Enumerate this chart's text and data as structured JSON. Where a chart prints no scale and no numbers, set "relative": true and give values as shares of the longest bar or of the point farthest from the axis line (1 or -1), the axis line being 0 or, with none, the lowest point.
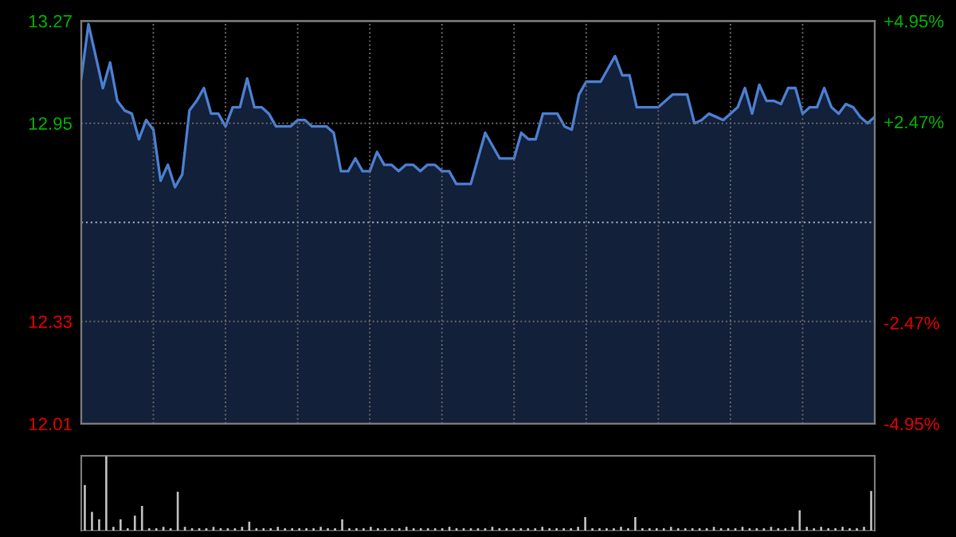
{
  "chart_data": [
    {
      "type": "area",
      "categories": [
        null,
        null,
        null,
        null,
        null,
        null,
        null,
        null,
        null,
        null,
        null,
        null,
        null,
        null,
        null,
        null,
        null,
        null,
        null,
        null,
        null,
        null,
        null,
        null,
        null,
        null,
        null,
        null,
        null,
        null,
        null,
        null,
        null,
        null,
        null,
        null,
        null,
        null,
        null,
        null,
        null,
        null,
        null,
        null,
        null,
        null,
        null,
        null,
        null,
        null,
        null,
        null,
        null,
        null,
        null,
        null,
        null,
        null,
        null,
        null,
        null,
        null,
        null,
        null,
        null,
        null,
        null,
        null,
        null,
        null,
        null,
        null,
        null,
        null,
        null,
        null,
        null,
        null,
        null,
        null,
        null,
        null,
        null,
        null,
        null,
        null,
        null,
        null,
        null,
        null,
        null,
        null,
        null,
        null,
        null,
        null,
        null,
        null,
        null,
        null,
        null,
        null,
        null,
        null,
        null,
        null,
        null,
        null,
        null,
        null,
        null
      ],
      "series": [
        {
          "color": "#4a7fd0",
          "values": [
            13.09,
            13.26,
            13.16,
            13.06,
            13.14,
            13.02,
            12.99,
            12.98,
            12.9,
            12.96,
            12.93,
            12.77,
            12.82,
            12.75,
            12.79,
            12.99,
            13.02,
            13.06,
            12.98,
            12.98,
            12.94,
            13.0,
            13.0,
            13.09,
            13.0,
            13.0,
            12.98,
            12.94,
            12.94,
            12.94,
            12.96,
            12.96,
            12.94,
            12.94,
            12.94,
            12.92,
            12.8,
            12.8,
            12.84,
            12.8,
            12.8,
            12.86,
            12.82,
            12.82,
            12.8,
            12.82,
            12.82,
            12.8,
            12.82,
            12.82,
            12.8,
            12.8,
            12.76,
            12.76,
            12.76,
            12.84,
            12.92,
            12.88,
            12.84,
            12.84,
            12.84,
            12.92,
            12.9,
            12.9,
            12.98,
            12.98,
            12.98,
            12.94,
            12.93,
            13.04,
            13.08,
            13.08,
            13.08,
            13.12,
            13.16,
            13.1,
            13.1,
            13.0,
            13.0,
            13.0,
            13.0,
            13.02,
            13.04,
            13.04,
            13.04,
            12.95,
            12.96,
            12.98,
            12.97,
            12.96,
            12.98,
            13.0,
            13.06,
            12.98,
            13.07,
            13.02,
            13.02,
            13.01,
            13.06,
            13.06,
            12.98,
            13.0,
            13.0,
            13.06,
            13.0,
            12.98,
            13.01,
            13.0,
            12.97,
            12.95,
            12.97
          ]
        }
      ],
      "ylim": [
        12.01,
        13.27
      ],
      "yticks": [
        13.27,
        12.95,
        12.33,
        12.01
      ],
      "y2lim": [
        -4.95,
        4.95
      ],
      "y2ticks": [
        {
          "value": 4.95,
          "label": "+4.95%"
        },
        {
          "value": 2.47,
          "label": "+2.47%"
        },
        {
          "value": -2.47,
          "label": "-2.47%"
        },
        {
          "value": -4.95,
          "label": "-4.95%"
        }
      ],
      "ref_lines": [
        {
          "axis": "y",
          "value": 12.64,
          "line_style": "dotted",
          "color": "#8a9ab0"
        }
      ],
      "grid": true,
      "tick_labels": "y"
    },
    {
      "type": "bar",
      "relative": true,
      "categories": [
        null,
        null,
        null,
        null,
        null,
        null,
        null,
        null,
        null,
        null,
        null,
        null,
        null,
        null,
        null,
        null,
        null,
        null,
        null,
        null,
        null,
        null,
        null,
        null,
        null,
        null,
        null,
        null,
        null,
        null,
        null,
        null,
        null,
        null,
        null,
        null,
        null,
        null,
        null,
        null,
        null,
        null,
        null,
        null,
        null,
        null,
        null,
        null,
        null,
        null,
        null,
        null,
        null,
        null,
        null,
        null,
        null,
        null,
        null,
        null,
        null,
        null,
        null,
        null,
        null,
        null,
        null,
        null,
        null,
        null,
        null,
        null,
        null,
        null,
        null,
        null,
        null,
        null,
        null,
        null,
        null,
        null,
        null,
        null,
        null,
        null,
        null,
        null,
        null,
        null,
        null,
        null,
        null,
        null,
        null,
        null,
        null,
        null,
        null,
        null,
        null,
        null,
        null,
        null,
        null,
        null,
        null,
        null,
        null,
        null,
        null
      ],
      "values": [
        0.61,
        0.25,
        0.15,
        1.0,
        0.05,
        0.15,
        0.03,
        0.2,
        0.33,
        0.03,
        0.03,
        0.05,
        0.03,
        0.52,
        0.05,
        0.03,
        0.03,
        0.03,
        0.05,
        0.03,
        0.03,
        0.03,
        0.05,
        0.12,
        0.03,
        0.03,
        0.03,
        0.05,
        0.03,
        0.03,
        0.03,
        0.03,
        0.03,
        0.05,
        0.03,
        0.03,
        0.15,
        0.03,
        0.03,
        0.03,
        0.05,
        0.03,
        0.03,
        0.03,
        0.03,
        0.05,
        0.03,
        0.03,
        0.03,
        0.03,
        0.03,
        0.05,
        0.03,
        0.03,
        0.03,
        0.03,
        0.03,
        0.05,
        0.03,
        0.03,
        0.03,
        0.03,
        0.03,
        0.03,
        0.05,
        0.03,
        0.03,
        0.03,
        0.03,
        0.05,
        0.18,
        0.03,
        0.03,
        0.03,
        0.03,
        0.05,
        0.03,
        0.18,
        0.03,
        0.03,
        0.03,
        0.03,
        0.05,
        0.03,
        0.03,
        0.03,
        0.03,
        0.03,
        0.05,
        0.03,
        0.03,
        0.03,
        0.05,
        0.03,
        0.03,
        0.03,
        0.05,
        0.03,
        0.03,
        0.05,
        0.27,
        0.05,
        0.03,
        0.05,
        0.03,
        0.03,
        0.05,
        0.03,
        0.03,
        0.05,
        0.53
      ],
      "color": "#bbbbbb",
      "grid": false
    }
  ]
}
